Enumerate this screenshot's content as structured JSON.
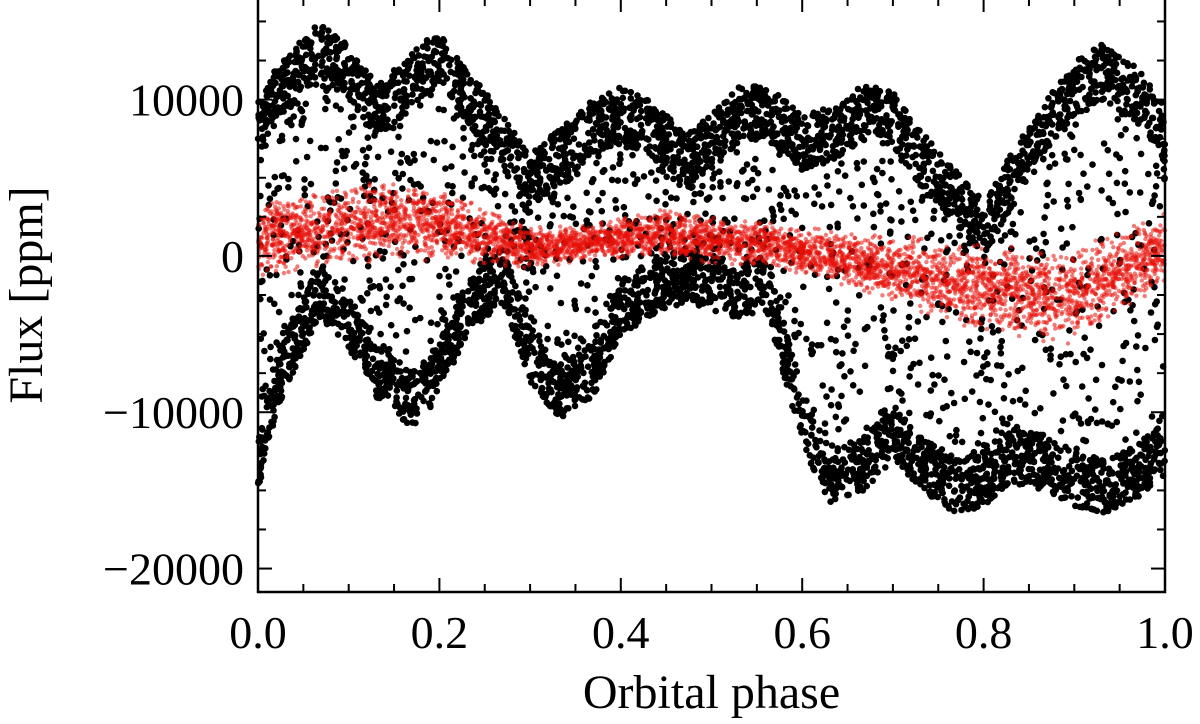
{
  "chart_data": {
    "type": "scatter",
    "xlabel": "Orbital phase",
    "ylabel": "Flux [ppm]",
    "xlim": [
      0.0,
      1.0
    ],
    "ylim": [
      -21500,
      16500
    ],
    "x_ticks": [
      0.0,
      0.2,
      0.4,
      0.6,
      0.8,
      1.0
    ],
    "x_tick_labels": [
      "0.0",
      "0.2",
      "0.4",
      "0.6",
      "0.8",
      "1.0"
    ],
    "y_ticks": [
      -20000,
      -10000,
      0,
      10000
    ],
    "y_tick_labels": [
      "−20000",
      "−10000",
      "0",
      "10000"
    ],
    "grid": false,
    "series": [
      {
        "color": "#000000",
        "marker": "dot",
        "description_points": {
          "x": [
            0.0,
            0.02,
            0.05,
            0.07,
            0.1,
            0.13,
            0.17,
            0.2,
            0.23,
            0.27,
            0.3,
            0.33,
            0.37,
            0.4,
            0.43,
            0.47,
            0.5,
            0.53,
            0.56,
            0.6,
            0.63,
            0.67,
            0.7,
            0.73,
            0.77,
            0.8,
            0.83,
            0.87,
            0.9,
            0.93,
            0.97,
            1.0
          ],
          "upper": [
            10000,
            12000,
            14000,
            15000,
            13500,
            11000,
            13000,
            14500,
            12000,
            9000,
            6500,
            8000,
            10000,
            10800,
            10000,
            8000,
            9000,
            10800,
            11000,
            9000,
            9500,
            11000,
            10500,
            8000,
            5500,
            3500,
            6500,
            10000,
            12500,
            13500,
            12000,
            9500
          ],
          "lower": [
            -15000,
            -10000,
            -6000,
            -4000,
            -6000,
            -9000,
            -11000,
            -9000,
            -5000,
            -3000,
            -8000,
            -10500,
            -9000,
            -5000,
            -4000,
            -3000,
            -3500,
            -4000,
            -3500,
            -12000,
            -16000,
            -15000,
            -13000,
            -15000,
            -16500,
            -16000,
            -14500,
            -15000,
            -16000,
            -16500,
            -15500,
            -14000
          ]
        }
      },
      {
        "color": "#e8100a",
        "marker": "dot",
        "description_points": {
          "x": [
            0.0,
            0.05,
            0.1,
            0.15,
            0.2,
            0.25,
            0.3,
            0.35,
            0.4,
            0.45,
            0.5,
            0.55,
            0.6,
            0.65,
            0.7,
            0.75,
            0.8,
            0.85,
            0.9,
            0.95,
            1.0
          ],
          "center": [
            1000,
            1500,
            2000,
            2300,
            2000,
            1200,
            500,
            800,
            1200,
            1500,
            1000,
            800,
            400,
            -200,
            -800,
            -1500,
            -2000,
            -2500,
            -2500,
            -1000,
            500
          ],
          "halfwidth": [
            2500,
            2500,
            2600,
            2600,
            2400,
            2000,
            1400,
            1200,
            1400,
            1600,
            1600,
            1500,
            1600,
            1800,
            2200,
            2700,
            2800,
            3000,
            3200,
            2800,
            2400
          ]
        }
      }
    ]
  }
}
